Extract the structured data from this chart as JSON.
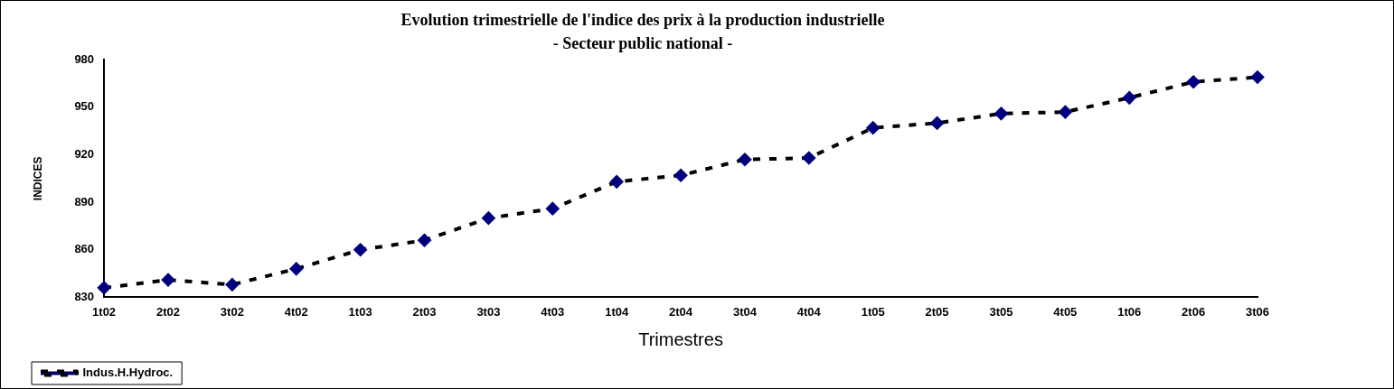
{
  "chart_data": {
    "type": "line",
    "title": "Evolution trimestrielle de l'indice des prix à la production industrielle",
    "subtitle": "- Secteur public national -",
    "xlabel": "Trimestres",
    "ylabel": "INDICES",
    "categories": [
      "1t02",
      "2t02",
      "3t02",
      "4t02",
      "1t03",
      "2t03",
      "3t03",
      "4t03",
      "1t04",
      "2t04",
      "3t04",
      "4t04",
      "1t05",
      "2t05",
      "3t05",
      "4t05",
      "1t06",
      "2t06",
      "3t06"
    ],
    "series": [
      {
        "name": "Indus.H.Hydroc.",
        "color": "#000000",
        "values": [
          836,
          841,
          838,
          848,
          860,
          866,
          880,
          886,
          903,
          907,
          917,
          918,
          937,
          940,
          946,
          947,
          956,
          966,
          969
        ]
      }
    ],
    "ylim": [
      830,
      980
    ],
    "yticks": [
      830,
      860,
      890,
      920,
      950,
      980
    ],
    "grid": false,
    "legend": "bottom left",
    "marker": "diamond",
    "line_style": "dashed"
  }
}
